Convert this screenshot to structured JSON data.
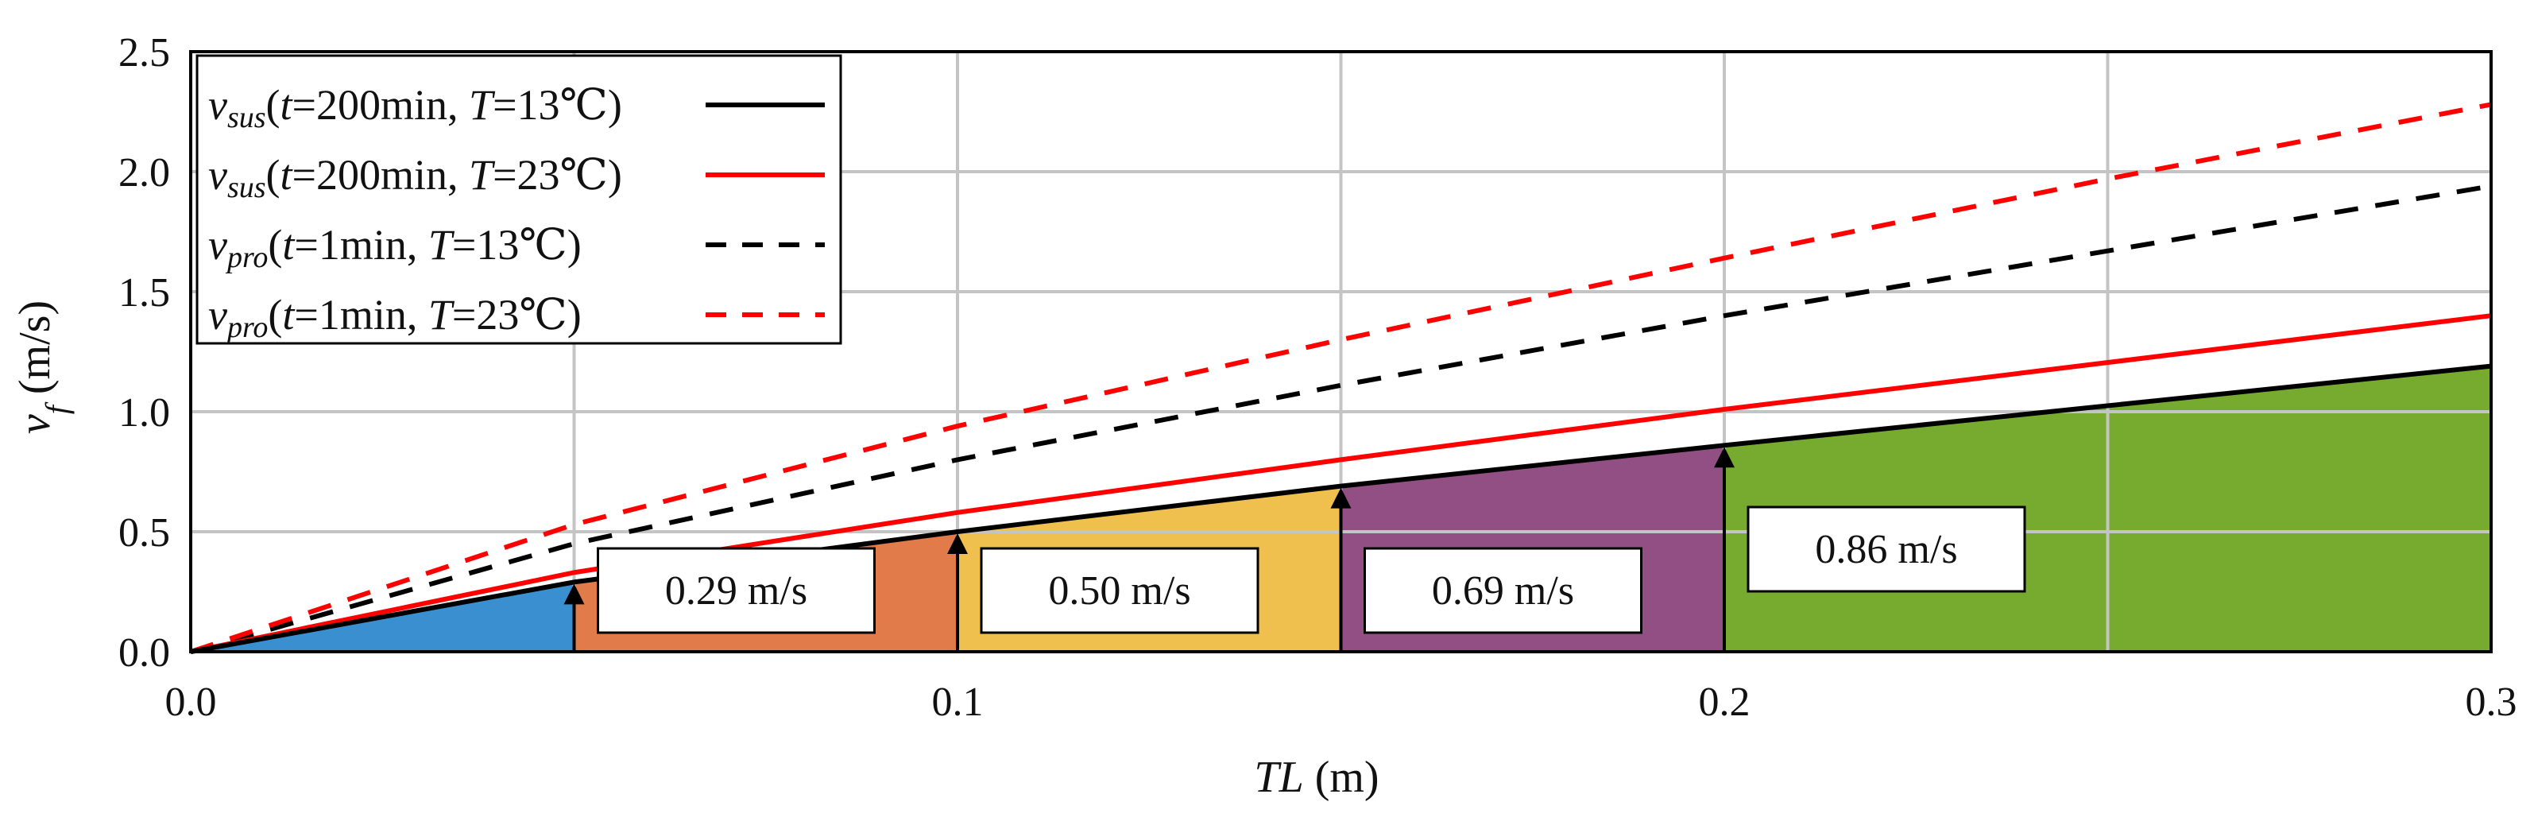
{
  "chart_data": {
    "type": "line",
    "title": "",
    "xlabel": {
      "italic": "TL",
      "rest": " (m)"
    },
    "ylabel": {
      "main": "v",
      "sub": "f",
      "rest": " (m/s)"
    },
    "xlim": [
      0,
      0.3
    ],
    "ylim": [
      0,
      2.5
    ],
    "xticks": [
      0,
      0.1,
      0.2,
      0.3
    ],
    "xtick_labels": [
      "0.0",
      "0.1",
      "0.2",
      "0.3"
    ],
    "yticks": [
      0,
      0.5,
      1.0,
      1.5,
      2.0,
      2.5
    ],
    "ytick_labels": [
      "0.0",
      "0.5",
      "1.0",
      "1.5",
      "2.0",
      "2.5"
    ],
    "grid": true,
    "legend_position": "top-left",
    "series": [
      {
        "name": "v_sus(t=200min, T=13°C)",
        "color": "#000000",
        "dash": "solid",
        "legend": {
          "v": "v",
          "sub": "sus",
          "a": "(",
          "t": "t",
          "b": "=200min, ",
          "T": "T",
          "c": "=13℃)"
        },
        "x": [
          0,
          0.05,
          0.1,
          0.15,
          0.2,
          0.3
        ],
        "y": [
          0,
          0.29,
          0.5,
          0.69,
          0.86,
          1.19
        ]
      },
      {
        "name": "v_sus(t=200min, T=23°C)",
        "color": "#ff0000",
        "dash": "solid",
        "legend": {
          "v": "v",
          "sub": "sus",
          "a": "(",
          "t": "t",
          "b": "=200min, ",
          "T": "T",
          "c": "=23℃)"
        },
        "x": [
          0,
          0.05,
          0.1,
          0.15,
          0.2,
          0.3
        ],
        "y": [
          0,
          0.33,
          0.58,
          0.8,
          1.01,
          1.4
        ]
      },
      {
        "name": "v_pro(t=1min, T=13°C)",
        "color": "#000000",
        "dash": "dashed",
        "legend": {
          "v": "v",
          "sub": "pro",
          "a": "(",
          "t": "t",
          "b": "=1min, ",
          "T": "T",
          "c": "=13℃)"
        },
        "x": [
          0,
          0.05,
          0.1,
          0.15,
          0.2,
          0.25,
          0.3
        ],
        "y": [
          0,
          0.45,
          0.8,
          1.11,
          1.4,
          1.67,
          1.94
        ]
      },
      {
        "name": "v_pro(t=1min, T=23°C)",
        "color": "#ff0000",
        "dash": "dashed",
        "legend": {
          "v": "v",
          "sub": "pro",
          "a": "(",
          "t": "t",
          "b": "=1min, ",
          "T": "T",
          "c": "=23℃)"
        },
        "x": [
          0,
          0.05,
          0.1,
          0.15,
          0.2,
          0.25,
          0.3
        ],
        "y": [
          0,
          0.53,
          0.94,
          1.3,
          1.64,
          1.97,
          2.28
        ]
      }
    ],
    "regions": [
      {
        "x0": 0.0,
        "x1": 0.05,
        "color": "#3a8fd0"
      },
      {
        "x0": 0.05,
        "x1": 0.1,
        "color": "#e17b4a"
      },
      {
        "x0": 0.1,
        "x1": 0.15,
        "color": "#f0c04e"
      },
      {
        "x0": 0.15,
        "x1": 0.2,
        "color": "#914f83"
      },
      {
        "x0": 0.2,
        "x1": 0.3,
        "color": "#77ab30"
      }
    ],
    "annotations": [
      {
        "x": 0.05,
        "y": 0.29,
        "label": "0.29 m/s"
      },
      {
        "x": 0.1,
        "y": 0.5,
        "label": "0.50 m/s"
      },
      {
        "x": 0.15,
        "y": 0.69,
        "label": "0.69 m/s"
      },
      {
        "x": 0.2,
        "y": 0.86,
        "label": "0.86 m/s"
      }
    ]
  }
}
